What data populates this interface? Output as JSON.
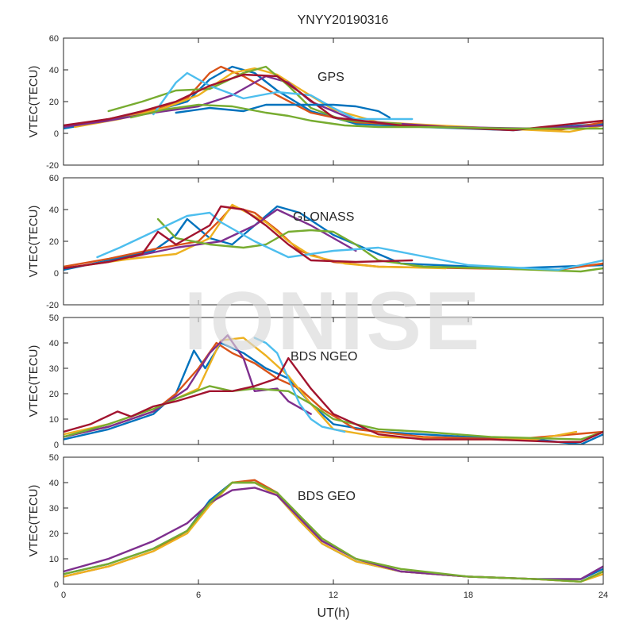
{
  "figure": {
    "title": "YNYY20190316",
    "xlabel": "UT(h)",
    "watermark": "IONISE"
  },
  "chart_data": [
    {
      "type": "line",
      "annotation": "GPS",
      "ylabel": "VTEC(TECU)",
      "xlim": [
        0,
        24
      ],
      "ylim": [
        -20,
        60
      ],
      "xticks": [
        0,
        6,
        12,
        18,
        24
      ],
      "yticks": [
        -20,
        0,
        20,
        40,
        60
      ],
      "grid": false,
      "series": [
        {
          "color": "#0072BD",
          "x": [
            0,
            2,
            4,
            5.5,
            6.5,
            7.5,
            8.5,
            9.5,
            11,
            13,
            16,
            20,
            24
          ],
          "y": [
            3,
            8,
            14,
            20,
            34,
            42,
            38,
            27,
            14,
            6,
            4,
            2,
            6
          ]
        },
        {
          "color": "#D95319",
          "x": [
            0,
            2,
            4,
            5.5,
            6.5,
            7,
            8,
            9.5,
            11,
            13,
            17,
            22,
            24
          ],
          "y": [
            4,
            9,
            15,
            22,
            38,
            42,
            36,
            24,
            13,
            7,
            4,
            2,
            7
          ]
        },
        {
          "color": "#EDB120",
          "x": [
            0.5,
            2.5,
            4.5,
            6,
            7.5,
            8.5,
            9.5,
            10.5,
            12,
            14,
            18,
            22.5,
            24
          ],
          "y": [
            4,
            9,
            16,
            24,
            38,
            41,
            37,
            28,
            15,
            7,
            4,
            1,
            5
          ]
        },
        {
          "color": "#7E2F8E",
          "x": [
            0,
            2,
            4,
            6,
            7.5,
            9,
            10,
            11,
            13,
            17,
            21,
            24
          ],
          "y": [
            4,
            8,
            13,
            17,
            24,
            36,
            32,
            20,
            8,
            4,
            3,
            5
          ]
        },
        {
          "color": "#77AC30",
          "x": [
            2,
            3.5,
            5,
            6.5,
            8,
            9,
            10,
            11,
            12.5,
            15
          ],
          "y": [
            14,
            20,
            27,
            28,
            38,
            42,
            30,
            16,
            8,
            6
          ]
        },
        {
          "color": "#4DBEEE",
          "x": [
            4,
            5,
            5.5,
            6.5,
            8,
            9.5,
            11,
            12,
            13,
            15.5
          ],
          "y": [
            12,
            32,
            38,
            30,
            22,
            26,
            24,
            16,
            9,
            9
          ]
        },
        {
          "color": "#A2142F",
          "x": [
            0,
            2,
            3.5,
            5,
            6.5,
            8,
            9.5,
            10.5,
            12,
            15,
            20,
            24
          ],
          "y": [
            5,
            9,
            14,
            20,
            30,
            37,
            36,
            26,
            10,
            5,
            2,
            8
          ]
        },
        {
          "color": "#0072BD",
          "x": [
            5,
            6.5,
            8,
            9,
            10,
            11,
            12,
            13,
            14,
            14.5
          ],
          "y": [
            13,
            16,
            14,
            18,
            18,
            18,
            18,
            17,
            14,
            10
          ]
        },
        {
          "color": "#77AC30",
          "x": [
            3,
            4.5,
            6,
            7.5,
            9,
            10,
            11,
            12.5,
            14,
            16,
            20,
            24
          ],
          "y": [
            10,
            15,
            18,
            17,
            13,
            11,
            8,
            5,
            4,
            4,
            3,
            3
          ]
        }
      ]
    },
    {
      "type": "line",
      "annotation": "GLONASS",
      "ylabel": "VTEC(TECU)",
      "xlim": [
        0,
        24
      ],
      "ylim": [
        -20,
        60
      ],
      "xticks": [
        0,
        6,
        12,
        18,
        24
      ],
      "yticks": [
        -20,
        0,
        20,
        40,
        60
      ],
      "grid": false,
      "series": [
        {
          "color": "#0072BD",
          "x": [
            0,
            2,
            4,
            5,
            5.5,
            6.5,
            7.5,
            8.5,
            9.5,
            10.5,
            12,
            15,
            20,
            24
          ],
          "y": [
            2,
            8,
            14,
            24,
            34,
            22,
            18,
            30,
            42,
            38,
            24,
            6,
            3,
            5
          ]
        },
        {
          "color": "#D95319",
          "x": [
            0,
            2,
            4,
            6,
            7,
            7.5,
            8.5,
            9.5,
            10.5,
            12,
            14,
            18,
            22,
            24
          ],
          "y": [
            4,
            9,
            15,
            20,
            34,
            42,
            38,
            27,
            14,
            7,
            4,
            3,
            2,
            6
          ]
        },
        {
          "color": "#EDB120",
          "x": [
            1,
            3,
            5,
            6.5,
            7.5,
            9,
            10,
            11,
            12.5,
            14,
            17
          ],
          "y": [
            5,
            9,
            12,
            22,
            43,
            32,
            20,
            11,
            6,
            4,
            3
          ]
        },
        {
          "color": "#7E2F8E",
          "x": [
            3,
            5,
            7,
            8.5,
            9.5,
            11,
            12.5,
            13
          ],
          "y": [
            10,
            16,
            20,
            30,
            40,
            30,
            18,
            14
          ]
        },
        {
          "color": "#77AC30",
          "x": [
            4.2,
            5,
            6.5,
            8,
            9,
            10,
            11,
            12,
            13,
            14,
            16,
            19,
            23,
            24
          ],
          "y": [
            34,
            22,
            18,
            16,
            18,
            26,
            27,
            26,
            18,
            8,
            4,
            3,
            1,
            3
          ]
        },
        {
          "color": "#4DBEEE",
          "x": [
            1.5,
            2.5,
            5.5,
            6.5,
            7,
            8.5,
            10,
            12,
            14,
            18,
            22,
            24
          ],
          "y": [
            10,
            16,
            36,
            38,
            32,
            20,
            10,
            14,
            16,
            5,
            2,
            8
          ]
        },
        {
          "color": "#A2142F",
          "x": [
            0,
            2,
            3.5,
            4.2,
            5,
            6.5,
            7,
            8,
            9,
            10,
            11,
            13,
            15.5
          ],
          "y": [
            3,
            7,
            12,
            26,
            18,
            30,
            42,
            40,
            30,
            18,
            8,
            7,
            8
          ]
        }
      ]
    },
    {
      "type": "line",
      "annotation": "BDS NGEO",
      "ylabel": "VTEC(TECU)",
      "xlim": [
        0,
        24
      ],
      "ylim": [
        0,
        50
      ],
      "xticks": [
        0,
        6,
        12,
        18,
        24
      ],
      "yticks": [
        0,
        10,
        20,
        30,
        40,
        50
      ],
      "grid": false,
      "series": [
        {
          "color": "#0072BD",
          "x": [
            0,
            2,
            4,
            5,
            5.8,
            6.3,
            7,
            8,
            9,
            10,
            11,
            12,
            14,
            18,
            21,
            23,
            24
          ],
          "y": [
            2,
            6,
            12,
            20,
            37,
            30,
            40,
            36,
            30,
            26,
            16,
            8,
            5,
            3,
            2,
            0,
            4
          ]
        },
        {
          "color": "#D95319",
          "x": [
            0,
            2,
            4,
            5,
            6,
            6.8,
            7.5,
            8.5,
            9.5,
            10.5,
            11.5,
            13,
            16,
            20,
            24
          ],
          "y": [
            3,
            7,
            13,
            20,
            30,
            40,
            36,
            32,
            26,
            22,
            14,
            6,
            3,
            2,
            5
          ]
        },
        {
          "color": "#EDB120",
          "x": [
            0,
            2,
            4,
            6,
            7,
            8,
            9,
            10,
            11,
            12,
            14,
            17,
            21,
            22.8
          ],
          "y": [
            4,
            8,
            14,
            22,
            41,
            42,
            35,
            27,
            16,
            6,
            3,
            2,
            2,
            5
          ]
        },
        {
          "color": "#7E2F8E",
          "x": [
            0,
            2,
            4,
            5.5,
            6.5,
            7.3,
            8,
            8.5,
            9.5,
            10,
            11
          ],
          "y": [
            3,
            7,
            13,
            22,
            36,
            43,
            34,
            21,
            22,
            17,
            12
          ]
        },
        {
          "color": "#77AC30",
          "x": [
            0,
            2,
            4,
            5,
            6.5,
            7.5,
            8.5,
            10,
            11,
            12,
            14,
            16,
            19,
            23,
            24
          ],
          "y": [
            3,
            8,
            14,
            18,
            23,
            21,
            22,
            21,
            16,
            10,
            6,
            5,
            3,
            2,
            5
          ]
        },
        {
          "color": "#4DBEEE",
          "x": [
            8.5,
            9,
            9.5,
            10,
            10.5,
            11,
            11.5,
            12.5
          ],
          "y": [
            42,
            40,
            36,
            26,
            16,
            10,
            7,
            5
          ]
        },
        {
          "color": "#A2142F",
          "x": [
            0,
            1.2,
            2.4,
            3,
            4,
            5,
            6.5,
            7.5,
            8.5,
            9.5,
            10,
            11,
            12,
            14,
            16,
            19,
            22,
            23,
            24
          ],
          "y": [
            5,
            8,
            13,
            11,
            15,
            17,
            21,
            21,
            23,
            26,
            34,
            22,
            12,
            4,
            2,
            2,
            1,
            1,
            5
          ]
        }
      ]
    },
    {
      "type": "line",
      "annotation": "BDS GEO",
      "ylabel": "VTEC(TECU)",
      "xlim": [
        0,
        24
      ],
      "ylim": [
        0,
        50
      ],
      "xticks": [
        0,
        6,
        12,
        18,
        24
      ],
      "yticks": [
        0,
        10,
        20,
        30,
        40,
        50
      ],
      "grid": false,
      "series": [
        {
          "color": "#0072BD",
          "x": [
            0,
            2,
            4,
            5.5,
            6.5,
            7.5,
            8.5,
            9.5,
            10.5,
            11.5,
            13,
            15,
            18,
            21,
            23,
            24
          ],
          "y": [
            4,
            8,
            14,
            21,
            33,
            40,
            40,
            35,
            25,
            16,
            9,
            5,
            3,
            2,
            2,
            6
          ]
        },
        {
          "color": "#D95319",
          "x": [
            0,
            2,
            4,
            5.5,
            6.5,
            7.5,
            8.5,
            9.5,
            10.5,
            11.5,
            13,
            15,
            18,
            21,
            23,
            24
          ],
          "y": [
            3,
            7,
            13,
            21,
            32,
            40,
            41,
            36,
            26,
            17,
            10,
            5,
            3,
            2,
            1,
            5
          ]
        },
        {
          "color": "#EDB120",
          "x": [
            0,
            2,
            4,
            5.5,
            6.5,
            7.5,
            8.5,
            9.5,
            10.5,
            11.5,
            13,
            15,
            18,
            21,
            23,
            24
          ],
          "y": [
            3,
            7,
            13,
            20,
            31,
            40,
            40,
            35,
            25,
            16,
            9,
            5,
            3,
            2,
            1,
            4
          ]
        },
        {
          "color": "#7E2F8E",
          "x": [
            0,
            2,
            4,
            5.5,
            6.5,
            7.5,
            8.5,
            9.5,
            10.5,
            11.5,
            13,
            15,
            18,
            21,
            23,
            24
          ],
          "y": [
            5,
            10,
            17,
            24,
            32,
            37,
            38,
            35,
            26,
            17,
            10,
            5,
            3,
            2,
            2,
            7
          ]
        },
        {
          "color": "#77AC30",
          "x": [
            0,
            2,
            4,
            5.5,
            6.5,
            7.5,
            8.5,
            9.5,
            10.5,
            11.5,
            13,
            15,
            18,
            21,
            23,
            24
          ],
          "y": [
            4,
            8,
            14,
            21,
            32,
            40,
            40,
            36,
            27,
            18,
            10,
            6,
            3,
            2,
            1,
            5
          ]
        }
      ]
    }
  ]
}
